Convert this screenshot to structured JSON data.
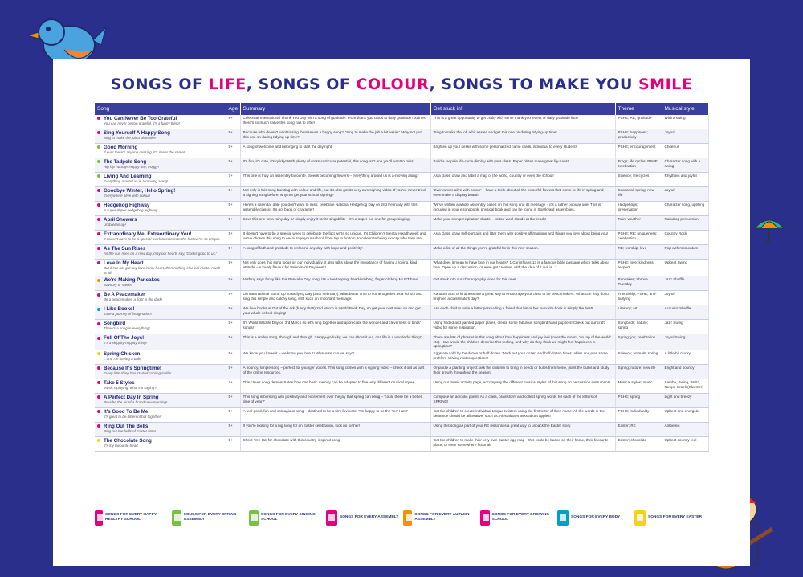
{
  "title": {
    "part1": "SONGS OF ",
    "life": "LIFE",
    "part2": ", SONGS OF ",
    "colour": "COLOUR",
    "part3": ", SONGS TO MAKE YOU ",
    "smile": "SMILE"
  },
  "headers": {
    "song": "Song",
    "age": "Age",
    "summary": "Summary",
    "stuck": "Get stuck in!",
    "theme": "Theme",
    "style": "Musical style"
  },
  "songs": [
    {
      "name": "You Can Never Be Too Grateful",
      "sub": "You can never be too grateful, it's a funny thing!",
      "dot": "#e6007e",
      "age": "5+",
      "summary": "Celebrate International Thank You Day with a song of gratitude. From thank you cards to daily gratitude routines, there's so much value this song has to offer!",
      "stuck": "This is a great opportunity to get crafty with some thank you letters or daily gratitude lists!",
      "theme": "PSHE; RE; gratitude",
      "style": "With a swing"
    },
    {
      "name": "Sing Yourself A Happy Song",
      "sub": "Sing to make the job a bit easier!",
      "dot": "#e6007e",
      "age": "5+",
      "summary": "Because who doesn't want to sing themselves a happy song?! 'Sing to make the job a bit easier'. Why not put this one on during tidying-up time?",
      "stuck": "'Sing to make the job a bit easier' and get this one on during tidying-up time!",
      "theme": "PSHE; happiness; productivity",
      "style": "Joyful"
    },
    {
      "name": "Good Morning",
      "sub": "If ever there's anyone missing, it's never the same!",
      "dot": "#7ac143",
      "age": "5+",
      "summary": "A song of welcome and belonging to start the day right!",
      "stuck": "Brighten up your desks with some personalized name cards, individual to every student!",
      "theme": "PSHE; encouragement",
      "style": "Cheerful"
    },
    {
      "name": "The Tadpole Song",
      "sub": "Hip hip hooray! Happy day, froggy!",
      "dot": "#7ac143",
      "age": "5+",
      "summary": "It's fun, it's cute, it's quirky! With plenty of cross-curricular potential, this song isn't one you'll want to miss!",
      "stuck": "Build a tadpole life-cycle display with your class. Paper plates make great lily-pads!",
      "theme": "Frogs; life cycles; PSHE; celebration",
      "style": "Character song with a swing"
    },
    {
      "name": "Living And Learning",
      "sub": "Everything around us is a-moving along!",
      "dot": "#7ac143",
      "age": "7+",
      "summary": "This one is truly an assembly favourite. 'Seeds becoming flowers – everything around us is a-moving along.'",
      "stuck": "As a class, draw and label a map of the world, country or even the school!",
      "theme": "Science; life cycles",
      "style": "Rhythmic and joyful"
    },
    {
      "name": "Goodbye Winter, Hello Spring!",
      "sub": "Everywhere alive with colour!",
      "dot": "#e6007e",
      "age": "5+",
      "summary": "Not only is this song bursting with colour and life, but it's also got its very own signing video. If you've never tried a signing song before, why not get your school signing?",
      "stuck": "'Everywhere alive with colour' – have a think about all the colourful flowers that come to life in spring and even make a display board!",
      "theme": "Seasonal; spring; new life",
      "style": "Joyful"
    },
    {
      "name": "Hedgehog Highway",
      "sub": "A super-duper hedgehog highway.",
      "dot": "#e6007e",
      "age": "5+",
      "summary": "Here's a calendar date you don't want to miss: celebrate National Hedgehog Day on 2nd February with this assembly classic. It's got bags of character!",
      "stuck": "We've written a whole assembly based on this song and its message – it's a rather popular one! This is included in your eSongbook, physical book and can be found in Sparkyard assemblies.",
      "theme": "Hedgehogs; preservation",
      "style": "Character song, uplifting"
    },
    {
      "name": "April Showers",
      "sub": "Umbrellas up!",
      "dot": "#e6007e",
      "age": "5+",
      "summary": "Save this one for a rainy day or simply enjoy it for its singability – it's a super-fun one for group singing!",
      "stuck": "Make your own precipitation charts – cotton-wool clouds at the ready!",
      "theme": "Rain; weather",
      "style": "Raindrop percussion"
    },
    {
      "name": "Extraordinary Me! Extraordinary You!",
      "sub": "It doesn't have to be a special week to celebrate the fact we're so unique.",
      "dot": "#e6007e",
      "age": "5+",
      "summary": "It doesn't have to be a special week to celebrate the fact we're so unique. It's Children's Mental Health week and we've chosen this song to encourage your school, from top to bottom, to celebrate being exactly who they are!",
      "stuck": "As a class, draw self-portraits and litter them with positive affirmations and things you love about being you!",
      "theme": "PSHE; RE; uniqueness; celebration",
      "style": "Country Rock"
    },
    {
      "name": "As The Sun Rises",
      "sub": "As the sun rises on a new day, may our hearts say, 'God is good to us.'",
      "dot": "#e6007e",
      "age": "5+",
      "summary": "A song of faith and gratitude to welcome any day with hope and positivity!",
      "stuck": "Make a list of all the things you're grateful for in this new season.",
      "theme": "RE; worship; love",
      "style": "Pop with momentum"
    },
    {
      "name": "Love In My Heart",
      "sub": "But if I've not got any love in my heart, then nothing else will matter much at all!",
      "dot": "#e6007e",
      "age": "5+",
      "summary": "Not only does this song focus on our individuality, it also talks about the importance of having a loving, kind attitude – a lovely flavour for Valentine's Day week!",
      "stuck": "What does it mean to have love in our hearts? 1 Corinthians 13 is a famous bible passage which talks about love. Open up a discussion, or even get creative, with the idea of 'Love is...'.",
      "theme": "PSHE; love; kindness; respect",
      "style": "Upbeat Swing"
    },
    {
      "name": "We're Making Pancakes",
      "sub": "Savoury or sweet!",
      "dot": "#f39200",
      "age": "5+",
      "summary": "Nothing says funky like this Pancake Day song. It's a toe-tapping, head-bobbing, finger-clicking MUST-have.",
      "stuck": "Get stuck into our choreography video for this one!",
      "theme": "Pancakes; Shrove Tuesday",
      "style": "Jazz Shuffle"
    },
    {
      "name": "Be A Peacemaker",
      "sub": "Be a peacemaker, a light in the dark!",
      "dot": "#e6007e",
      "age": "5+",
      "summary": "On International Stand Up To Bullying Day (24th February), what better time to come together as a school and sing this simple and catchy song, with such an important message.",
      "stuck": "Random acts of kindness are a great way to encourage your class to be peacemakers. What can they do to brighten a classmate's day?",
      "theme": "Friendship; PSHE; anti-bullying",
      "style": "Joyful"
    },
    {
      "name": "I Like Books!",
      "sub": "Take a journey of imagination!",
      "dot": "#00a0c6",
      "age": "5+",
      "summary": "We love books at Out of the Ark (funny that!) 2nd March is World Book Day, so get your costumes on and get your whole school singing!",
      "stuck": "Ask each child to write a letter persuading a friend that his or her favourite book is simply the best!",
      "theme": "Literacy; art",
      "style": "Acoustic Shuffle"
    },
    {
      "name": "Songbird",
      "sub": "There's a song in everything!",
      "dot": "#e6007e",
      "age": "5+",
      "summary": "It's World Wildlife Day on 3rd March so let's sing together and appreciate the wonder and cleverness of birds' songs!",
      "stuck": "Using folded and painted paper plates, create some fabulous songbird hand puppets! Check out our craft video for some inspiration.",
      "theme": "Songbirds; nature; spring",
      "style": "Jazz Swing"
    },
    {
      "name": "Full Of The Joys!",
      "sub": "It's a skippity-hoppity thing!",
      "dot": "#e6007e",
      "age": "5+",
      "summary": "This is a smiley song, through and through. 'Happy-go-lucky, we can shout it out, coz life is a wonderful thing!'",
      "stuck": "There are lots of phrases in this song about how happiness and joy feel ('over the moon', 'on top of the world' etc). How would the children describe this feeling, and why do they think we might feel happiness in springtime?",
      "theme": "Spring; joy; celebration",
      "style": "Joyful Swing"
    },
    {
      "name": "Spring Chicken",
      "sub": "...and I'm having a ball!",
      "dot": "#f7d117",
      "age": "5+",
      "summary": "We know you know it – we know you love it! What else can we say?!",
      "stuck": "Eggs are sold by the dozen or half dozen. Work out your dozen and half-dozen times tables and plan some problem-solving maths questions!",
      "theme": "Science; animals; spring",
      "style": "A little bit clucky!"
    },
    {
      "name": "Because It's Springtime!",
      "sub": "Every little thing has started coming to life!",
      "dot": "#e6007e",
      "age": "5+",
      "summary": "A bouncy, simple song – perfect for younger voices. This song comes with a signing video – check it out as part of the online resources.",
      "stuck": "Organize a planting project: ask the children to bring in seeds or bulbs from home, plant the bulbs and study their growth throughout the season!",
      "theme": "Spring; nature; new life",
      "style": "Bright and bouncy"
    },
    {
      "name": "Take 5 Styles",
      "sub": "Music's playing, what's it saying?",
      "dot": "#e6007e",
      "age": "7+",
      "summary": "This clever song demonstrates how one basic melody can be adapted to five very different musical styles.",
      "stuck": "Using our music activity page, accompany the different musical styles of this song on percussion instruments.",
      "theme": "Musical styles; music",
      "style": "Samba, Swing, Waltz, Tango, Israeli (Klezmer)"
    },
    {
      "name": "A Perfect Day In Spring",
      "sub": "Breathe the air of a brand new morning!",
      "dot": "#e6007e",
      "age": "5+",
      "summary": "This song is bursting with positivity and excitement over the joy that spring can bring – 'could there be a better time of year?'",
      "stuck": "Compose an acrostic poem! As a class, brainstorm and collect spring words for each of the letters of SPRING!",
      "theme": "PSHE; spring",
      "style": "Light and breezy"
    },
    {
      "name": "It's Good To Be Me!",
      "sub": "It's great to be different but together!",
      "dot": "#e6007e",
      "age": "5+",
      "summary": "A feel-good, fun and contagious song – destined to be a firm favourite! 'I'm happy to be the 'me' I am!'",
      "stuck": "Get the children to create individual tongue twisters using the first letter of their name. All the words in the sentence should be alliterative, such as: Alex always asks about apples!",
      "theme": "PSHE; individuality",
      "style": "Upbeat and energetic"
    },
    {
      "name": "Ring Out The Bells!",
      "sub": "Ring out the bells of Easter time!",
      "dot": "#e6007e",
      "age": "5+",
      "summary": "If you're looking for a big song for an Easter celebration, look no further!",
      "stuck": "Using this song as part of your RE lessons is a great way to unpack the Easter story.",
      "theme": "Easter; RE",
      "style": "Anthemic"
    },
    {
      "name": "The Chocolate Song",
      "sub": "It's my favourite treat!",
      "dot": "#f7d117",
      "age": "5+",
      "summary": "Shout 'Yee Ha' for chocolate with this country-inspired song.",
      "stuck": "Get the children to make their very own Easter egg map – this could be based on their home, their favourite place, or even somewhere fictional!",
      "theme": "Easter; chocolate",
      "style": "Upbeat country feel"
    }
  ],
  "legend": [
    {
      "label": "SONGS FOR EVERY HAPPY, HEALTHY SCHOOL",
      "color": "#e6007e"
    },
    {
      "label": "SONGS FOR EVERY SPRING ASSEMBLY",
      "color": "#7ac143"
    },
    {
      "label": "SONGS FOR EVERY SINGING SCHOOL",
      "color": "#7ac143"
    },
    {
      "label": "SONGS FOR EVERY ASSEMBLY",
      "color": "#e6007e"
    },
    {
      "label": "SONGS FOR EVERY AUTUMN ASSEMBLY",
      "color": "#f39200"
    },
    {
      "label": "SONGS FOR EVERY GROWING SCHOOL",
      "color": "#e6007e"
    },
    {
      "label": "SONGS FOR EVERY BODY",
      "color": "#00a0c6"
    },
    {
      "label": "SONGS FOR EVERY EASTER",
      "color": "#f7d117"
    }
  ]
}
